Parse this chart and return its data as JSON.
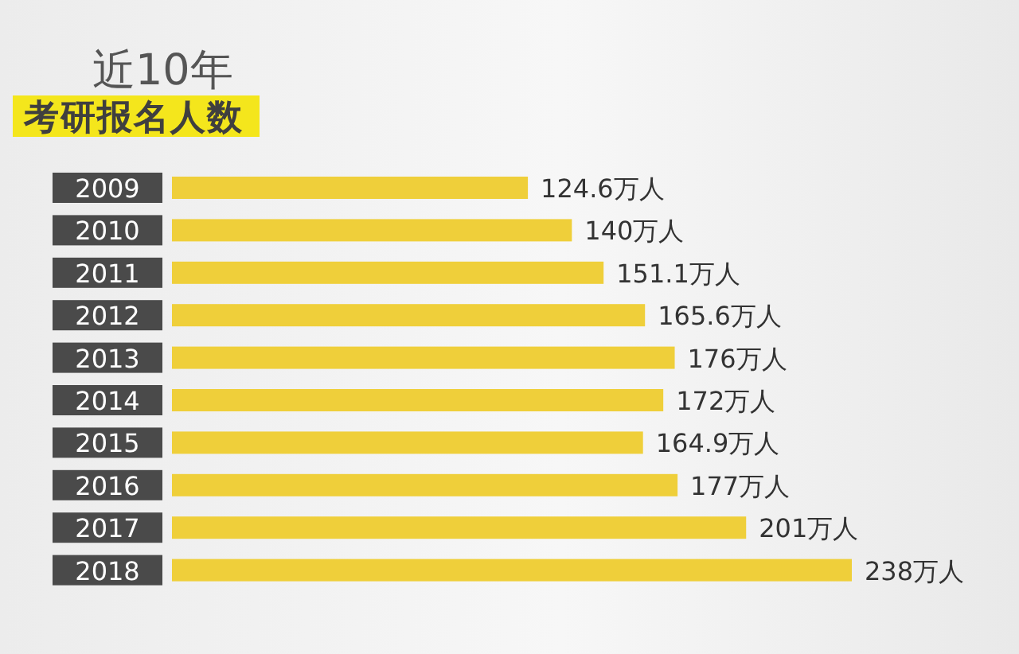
{
  "chart_data": {
    "type": "bar",
    "orientation": "horizontal",
    "title": "近10年",
    "subtitle": "考研报名人数",
    "categories": [
      "2009",
      "2010",
      "2011",
      "2012",
      "2013",
      "2014",
      "2015",
      "2016",
      "2017",
      "2018"
    ],
    "values": [
      124.6,
      140,
      151.1,
      165.6,
      176,
      172,
      164.9,
      177,
      201,
      238
    ],
    "color": "#efcf3a",
    "value_labels": [
      "124.6万人",
      "140万人",
      "151.1万人",
      "165.6万人",
      "176万人",
      "172万人",
      "164.9万人",
      "177万人",
      "201万人",
      "238万人"
    ]
  }
}
